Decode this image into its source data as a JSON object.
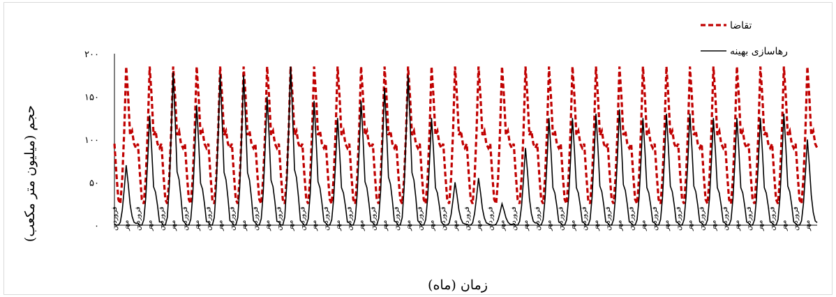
{
  "chart_data": {
    "type": "line",
    "xlabel": "زمان (ماه)",
    "ylabel": "حجم (میلیون متر مکعب)",
    "ylim": [
      0,
      200
    ],
    "yticks": [
      {
        "value": 0,
        "label": "۰"
      },
      {
        "value": 50,
        "label": "۵۰"
      },
      {
        "value": 100,
        "label": "۱۰۰"
      },
      {
        "value": 150,
        "label": "۱۵۰"
      },
      {
        "value": 200,
        "label": "۲۰۰"
      }
    ],
    "month_count": 360,
    "xtick_labels": {
      "farvardin": "فروردین",
      "mehr": "مهر"
    },
    "legend": {
      "position": "top-right"
    },
    "series": [
      {
        "name": "تقاضا",
        "color": "#c00000",
        "dash": true,
        "pattern_note": "repeats every 12 months",
        "monthly_pattern": [
          95,
          60,
          30,
          25,
          55,
          110,
          185,
          150,
          105,
          110,
          95,
          90
        ]
      },
      {
        "name": "رهاسازی بهینه",
        "color": "#000000",
        "dash": false,
        "peaks": [
          70,
          128,
          178,
          140,
          176,
          175,
          150,
          185,
          145,
          125,
          145,
          160,
          175,
          125,
          50,
          55,
          25,
          90,
          125,
          125,
          130,
          135,
          125,
          130,
          130,
          125,
          125,
          125,
          130,
          100
        ]
      }
    ]
  }
}
